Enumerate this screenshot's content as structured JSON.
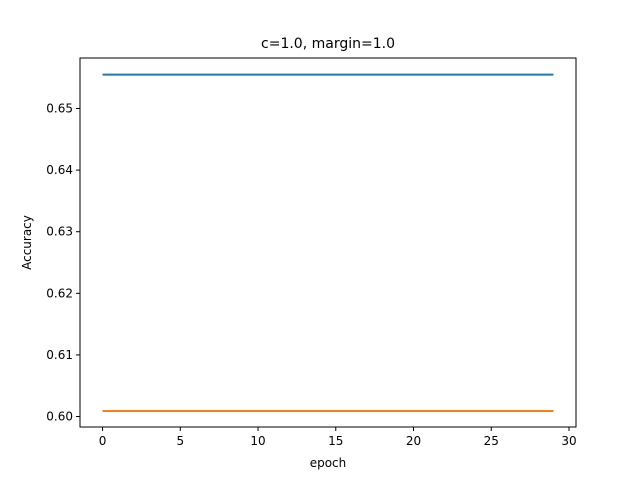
{
  "chart_data": {
    "type": "line",
    "title": "c=1.0, margin=1.0",
    "xlabel": "epoch",
    "ylabel": "Accuracy",
    "xlim": [
      -1.45,
      30.45
    ],
    "ylim": [
      0.5983,
      0.6582
    ],
    "xticks": [
      0,
      5,
      10,
      15,
      20,
      25,
      30
    ],
    "xtick_labels": [
      "0",
      "5",
      "10",
      "15",
      "20",
      "25",
      "30"
    ],
    "yticks": [
      0.6,
      0.61,
      0.62,
      0.63,
      0.64,
      0.65
    ],
    "ytick_labels": [
      "0.60",
      "0.61",
      "0.62",
      "0.63",
      "0.64",
      "0.65"
    ],
    "grid": false,
    "legend": false,
    "series": [
      {
        "color": "#1f77b4",
        "x_start": 0,
        "x_end": 29,
        "value": 0.6555
      },
      {
        "color": "#ff7f0e",
        "x_start": 0,
        "x_end": 29,
        "value": 0.6009
      }
    ]
  }
}
